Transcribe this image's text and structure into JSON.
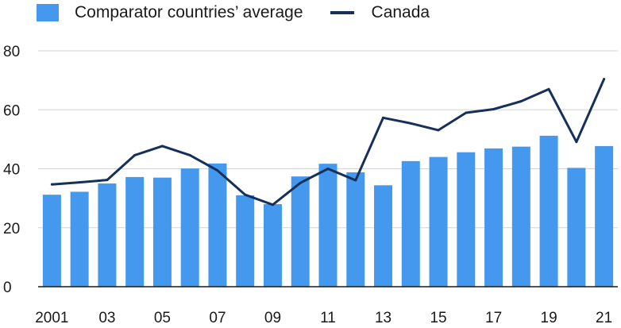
{
  "chart_data": {
    "type": "bar",
    "title": "",
    "xlabel": "",
    "ylabel": "",
    "ylim": [
      0,
      80
    ],
    "yticks": [
      0,
      20,
      40,
      60,
      80
    ],
    "grid": "horizontal",
    "legend_position": "top-left",
    "categories": [
      "2001",
      "2002",
      "2003",
      "2004",
      "2005",
      "2006",
      "2007",
      "2008",
      "2009",
      "2010",
      "2011",
      "2012",
      "2013",
      "2014",
      "2015",
      "2016",
      "2017",
      "2018",
      "2019",
      "2020",
      "2021"
    ],
    "tick_labels": [
      "2001",
      "",
      "03",
      "",
      "05",
      "",
      "07",
      "",
      "09",
      "",
      "11",
      "",
      "13",
      "",
      "15",
      "",
      "17",
      "",
      "19",
      "",
      "21"
    ],
    "series": [
      {
        "name": "Comparator countries’ average",
        "type": "bar",
        "color": "#4499ee",
        "values": [
          31.2,
          32.2,
          35.0,
          37.2,
          37.0,
          40.1,
          41.8,
          31.0,
          28.0,
          37.4,
          41.7,
          38.8,
          34.4,
          42.6,
          44.0,
          45.6,
          46.9,
          47.5,
          51.2,
          40.3,
          47.7
        ]
      },
      {
        "name": "Canada",
        "type": "line",
        "color": "#15305a",
        "values": [
          34.7,
          35.4,
          36.2,
          44.6,
          47.7,
          44.6,
          39.4,
          31.2,
          27.8,
          35.2,
          40.0,
          36.1,
          57.3,
          55.4,
          53.1,
          59.0,
          60.2,
          62.9,
          67.0,
          49.1,
          70.4
        ]
      }
    ]
  }
}
